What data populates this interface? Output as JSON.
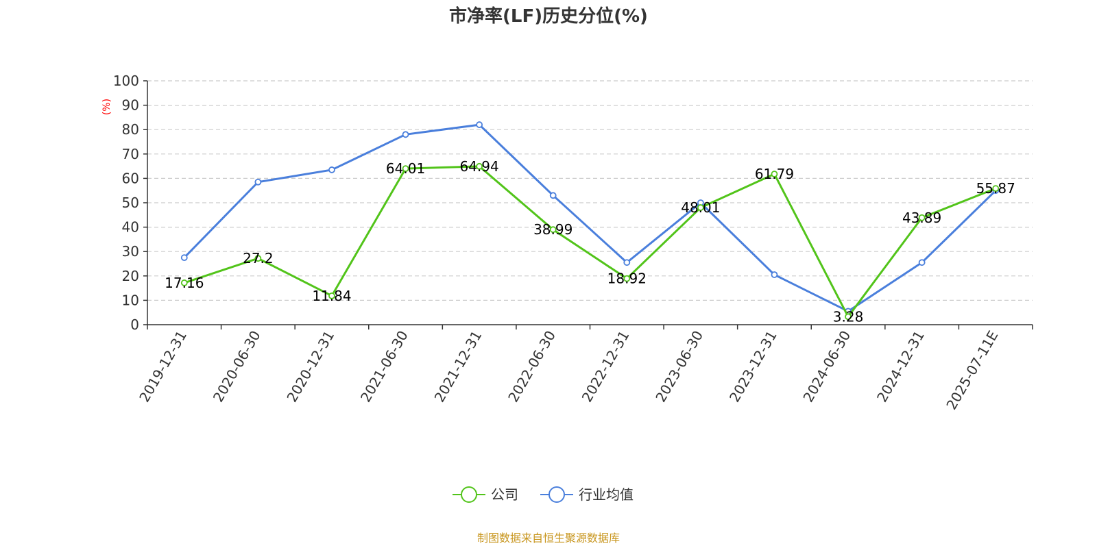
{
  "chart_data": {
    "type": "line",
    "title": "市净率(LF)历史分位(%)",
    "ylabel": "(%)",
    "ylim": [
      0,
      100
    ],
    "yticks": [
      "0",
      "10",
      "20",
      "30",
      "40",
      "50",
      "60",
      "70",
      "80",
      "90",
      "100"
    ],
    "grid": "horizontal dashed",
    "categories": [
      "2019-12-31",
      "2020-06-30",
      "2020-12-31",
      "2021-06-30",
      "2021-12-31",
      "2022-06-30",
      "2022-12-31",
      "2023-06-30",
      "2023-12-31",
      "2024-06-30",
      "2024-12-31",
      "2025-07-11E"
    ],
    "series": [
      {
        "name": "公司",
        "color": "#52c41a",
        "values": [
          17.16,
          27.2,
          11.84,
          64.01,
          64.94,
          38.99,
          18.92,
          48.01,
          61.79,
          3.28,
          43.89,
          55.87
        ],
        "labels": [
          "17.16",
          "27.2",
          "11.84",
          "64.01",
          "64.94",
          "38.99",
          "18.92",
          "48.01",
          "61.79",
          "3.28",
          "43.89",
          "55.87"
        ]
      },
      {
        "name": "行业均值",
        "color": "#4a7fdc",
        "values": [
          27.5,
          58.5,
          63.5,
          78,
          82,
          53,
          25.5,
          50,
          20.5,
          5.5,
          25.5,
          55
        ]
      }
    ],
    "legend_position": "bottom-center"
  },
  "source_note": "制图数据来自恒生聚源数据库",
  "colors": {
    "axis": "#333333",
    "grid": "#cccccc",
    "unit": "#ff0000",
    "source": "#c8961e"
  }
}
